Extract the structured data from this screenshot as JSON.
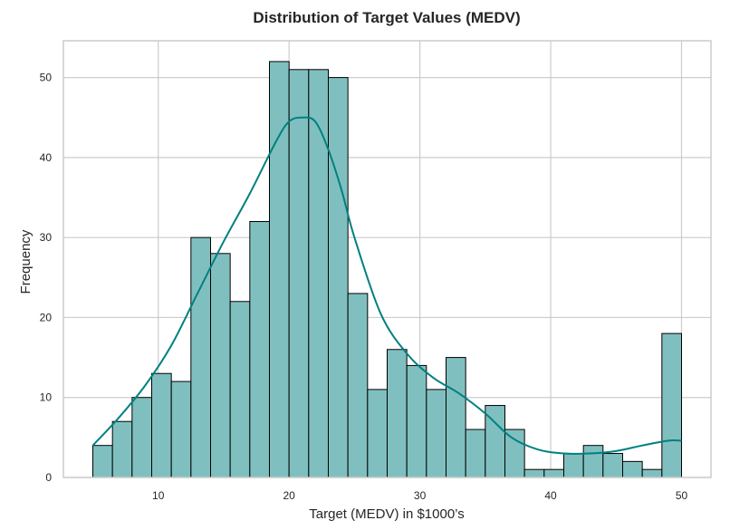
{
  "chart_data": {
    "type": "bar",
    "subtype": "histogram",
    "title": "Distribution of Target Values (MEDV)",
    "xlabel": "Target (MEDV) in $1000’s",
    "ylabel": "Frequency",
    "xlim": [
      2.75,
      52.25
    ],
    "ylim": [
      0,
      54.6
    ],
    "x_ticks": [
      10,
      20,
      30,
      40,
      50
    ],
    "y_ticks": [
      0,
      10,
      20,
      30,
      40,
      50
    ],
    "grid": true,
    "bin_edges": [
      5.0,
      6.5,
      8.0,
      9.5,
      11.0,
      12.5,
      14.0,
      15.5,
      17.0,
      18.5,
      20.0,
      21.5,
      23.0,
      24.5,
      26.0,
      27.5,
      29.0,
      30.5,
      32.0,
      33.5,
      35.0,
      36.5,
      38.0,
      39.5,
      41.0,
      42.5,
      44.0,
      45.5,
      47.0,
      48.5,
      50.0
    ],
    "values": [
      4,
      7,
      10,
      13,
      12,
      30,
      28,
      22,
      32,
      52,
      51,
      51,
      50,
      23,
      11,
      16,
      14,
      11,
      15,
      6,
      9,
      6,
      1,
      1,
      3,
      4,
      3,
      2,
      1,
      18
    ],
    "kde": {
      "x": [
        5,
        7,
        9,
        11,
        13,
        15,
        17,
        19,
        20,
        21,
        22,
        23,
        24,
        25,
        27,
        29,
        31,
        33,
        35,
        37,
        39,
        41,
        43,
        45,
        47,
        49,
        50
      ],
      "y": [
        4,
        7.5,
        11.5,
        16.5,
        23,
        29.5,
        35.5,
        42,
        44.5,
        45,
        44.5,
        41,
        36,
        30,
        20.5,
        15.5,
        12.5,
        10.5,
        8,
        5,
        3.5,
        3,
        3,
        3.3,
        4,
        4.6,
        4.6
      ]
    },
    "colors": {
      "bar_fill": "#80bfbf",
      "bar_edge": "#000000",
      "kde_line": "#008080"
    }
  }
}
